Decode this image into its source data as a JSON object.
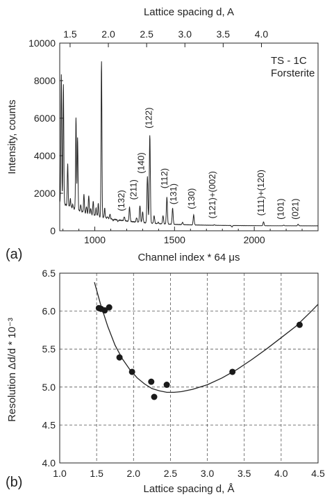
{
  "chart_data": [
    {
      "panel": "(a)",
      "type": "line",
      "title": "",
      "xlabel": "Channel index * 64 μs",
      "ylabel": "Intensity, counts",
      "top_axis_label": "Lattice spacing d, A",
      "xlim": [
        780,
        2400
      ],
      "ylim": [
        0,
        10000
      ],
      "x_ticks": [
        1000,
        1500,
        2000
      ],
      "y_ticks": [
        0,
        2000,
        4000,
        6000,
        8000,
        10000
      ],
      "top_ticks": [
        "1.5",
        "2.0",
        "2.5",
        "3.0",
        "3.5",
        "4.0"
      ],
      "top_tick_channels": [
        845,
        1085,
        1325,
        1565,
        1805,
        2045,
        2285
      ],
      "top_tick_labels": [
        {
          "text": "1.5",
          "channel": 845
        },
        {
          "text": "2.0",
          "channel": 1085
        },
        {
          "text": "2.5",
          "channel": 1325
        },
        {
          "text": "3.0",
          "channel": 1565
        },
        {
          "text": "3.5",
          "channel": 1805
        },
        {
          "text": "4.0",
          "channel": 2045
        }
      ],
      "top_tick_channels_used": [
        845,
        1085,
        1325,
        1565,
        1805,
        2045
      ],
      "annotation": [
        "TS - 1C",
        "Forsterite"
      ],
      "peaks": [
        {
          "x": 790,
          "y": 8300
        },
        {
          "x": 803,
          "y": 7800
        },
        {
          "x": 830,
          "y": 3600
        },
        {
          "x": 847,
          "y": 1700
        },
        {
          "x": 862,
          "y": 1400
        },
        {
          "x": 882,
          "y": 6000
        },
        {
          "x": 892,
          "y": 5000
        },
        {
          "x": 912,
          "y": 1400
        },
        {
          "x": 932,
          "y": 1950
        },
        {
          "x": 948,
          "y": 1300
        },
        {
          "x": 962,
          "y": 1900
        },
        {
          "x": 975,
          "y": 1200
        },
        {
          "x": 990,
          "y": 1600
        },
        {
          "x": 1008,
          "y": 1200
        },
        {
          "x": 1022,
          "y": 1450
        },
        {
          "x": 1042,
          "y": 9000
        },
        {
          "x": 1062,
          "y": 1200
        },
        {
          "x": 1080,
          "y": 750
        },
        {
          "x": 1095,
          "y": 900
        },
        {
          "x": 1115,
          "y": 550
        },
        {
          "x": 1145,
          "y": 500
        },
        {
          "x": 1185,
          "y": 750
        },
        {
          "x": 1218,
          "y": 1250
        },
        {
          "x": 1262,
          "y": 700
        },
        {
          "x": 1283,
          "y": 1350
        },
        {
          "x": 1300,
          "y": 1000
        },
        {
          "x": 1330,
          "y": 2900
        },
        {
          "x": 1345,
          "y": 5100
        },
        {
          "x": 1372,
          "y": 800
        },
        {
          "x": 1398,
          "y": 450
        },
        {
          "x": 1428,
          "y": 800
        },
        {
          "x": 1452,
          "y": 1800
        },
        {
          "x": 1488,
          "y": 1200
        },
        {
          "x": 1550,
          "y": 450
        },
        {
          "x": 1620,
          "y": 850
        },
        {
          "x": 1750,
          "y": 320
        },
        {
          "x": 1860,
          "y": 200
        },
        {
          "x": 2058,
          "y": 480
        },
        {
          "x": 2185,
          "y": 300
        },
        {
          "x": 2275,
          "y": 350
        }
      ],
      "peak_labels": [
        {
          "text": "(132)",
          "x": 1185,
          "y": 900
        },
        {
          "text": "(211)",
          "x": 1262,
          "y": 1500
        },
        {
          "text": "(140)",
          "x": 1310,
          "y": 2900
        },
        {
          "text": "(122)",
          "x": 1358,
          "y": 5300
        },
        {
          "text": "(112)",
          "x": 1455,
          "y": 2100
        },
        {
          "text": "(131)",
          "x": 1512,
          "y": 1250
        },
        {
          "text": "(130)",
          "x": 1625,
          "y": 1000
        },
        {
          "text": "(121)+(002)",
          "x": 1755,
          "y": 500
        },
        {
          "text": "(111)+(120)",
          "x": 2060,
          "y": 650
        },
        {
          "text": "(101)",
          "x": 2185,
          "y": 450
        },
        {
          "text": "(021)",
          "x": 2275,
          "y": 450
        }
      ]
    },
    {
      "panel": "(b)",
      "type": "scatter",
      "title": "",
      "xlabel": "Lattice spacing d, Å",
      "ylabel": "Resolution Δd/d * 10⁻³",
      "xlim": [
        1.0,
        4.5
      ],
      "ylim": [
        4.0,
        6.5
      ],
      "x_ticks": [
        1.0,
        1.5,
        2.0,
        2.5,
        3.0,
        3.5,
        4.0,
        4.5
      ],
      "y_ticks": [
        4.0,
        4.5,
        5.0,
        5.5,
        6.0,
        6.5
      ],
      "x_tick_labels": [
        "1.0",
        "1.5",
        "2.0",
        "2.5",
        "3.0",
        "3.5",
        "4.0",
        "4.5"
      ],
      "y_tick_labels": [
        "4.0",
        "4.5",
        "5.0",
        "5.5",
        "6.0",
        "6.5"
      ],
      "grid": true,
      "points": [
        {
          "x": 1.53,
          "y": 6.04
        },
        {
          "x": 1.56,
          "y": 6.03
        },
        {
          "x": 1.61,
          "y": 6.01
        },
        {
          "x": 1.67,
          "y": 6.05
        },
        {
          "x": 1.81,
          "y": 5.39
        },
        {
          "x": 1.98,
          "y": 5.2
        },
        {
          "x": 2.24,
          "y": 5.07
        },
        {
          "x": 2.28,
          "y": 4.87
        },
        {
          "x": 2.45,
          "y": 5.03
        },
        {
          "x": 3.34,
          "y": 5.2
        },
        {
          "x": 4.25,
          "y": 5.82
        }
      ],
      "fit_curve": [
        {
          "x": 1.47,
          "y": 6.38
        },
        {
          "x": 1.55,
          "y": 6.1
        },
        {
          "x": 1.65,
          "y": 5.8
        },
        {
          "x": 1.75,
          "y": 5.55
        },
        {
          "x": 1.85,
          "y": 5.37
        },
        {
          "x": 1.95,
          "y": 5.23
        },
        {
          "x": 2.05,
          "y": 5.12
        },
        {
          "x": 2.15,
          "y": 5.04
        },
        {
          "x": 2.25,
          "y": 4.98
        },
        {
          "x": 2.35,
          "y": 4.95
        },
        {
          "x": 2.45,
          "y": 4.93
        },
        {
          "x": 2.55,
          "y": 4.93
        },
        {
          "x": 2.65,
          "y": 4.94
        },
        {
          "x": 2.8,
          "y": 4.97
        },
        {
          "x": 3.0,
          "y": 5.03
        },
        {
          "x": 3.2,
          "y": 5.12
        },
        {
          "x": 3.4,
          "y": 5.23
        },
        {
          "x": 3.6,
          "y": 5.36
        },
        {
          "x": 3.8,
          "y": 5.5
        },
        {
          "x": 4.0,
          "y": 5.65
        },
        {
          "x": 4.2,
          "y": 5.8
        },
        {
          "x": 4.4,
          "y": 5.99
        },
        {
          "x": 4.5,
          "y": 6.09
        }
      ]
    }
  ]
}
